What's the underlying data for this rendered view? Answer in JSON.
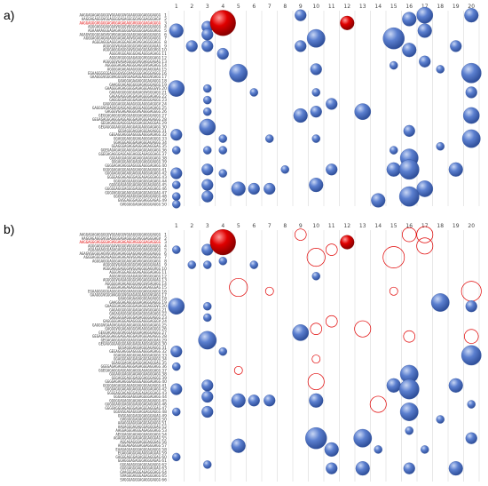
{
  "colors": {
    "blue_bubble": "#5b7fcf",
    "blue_bubble_dark": "#2f4f9a",
    "red_bubble": "#e00000",
    "open_circle": "#e00000",
    "grid": "#d9d9d9"
  },
  "chart_data": [
    {
      "type": "scatter",
      "panel_label": "a)",
      "x_ticks": [
        1,
        2,
        3,
        4,
        5,
        6,
        7,
        8,
        9,
        10,
        11,
        12,
        13,
        14,
        15,
        16,
        17,
        18,
        19,
        20
      ],
      "y_ticks": [
        1,
        2,
        3,
        4,
        5,
        6,
        7,
        8,
        9,
        10,
        11,
        12,
        13,
        14,
        15,
        16,
        17,
        18,
        19,
        20,
        21,
        22,
        23,
        24,
        25,
        26,
        27,
        28,
        29,
        30,
        31,
        32,
        33,
        34,
        35,
        36,
        37,
        38,
        39,
        40,
        41,
        42,
        43,
        44,
        45,
        46,
        47,
        48,
        49,
        50
      ],
      "highlighted_rows": [
        3
      ],
      "red_bubbles": [
        {
          "x": 4,
          "y": 3,
          "size": 10
        },
        {
          "x": 12,
          "y": 3,
          "size": 3
        }
      ],
      "blue_bubbles": [
        {
          "x": 9,
          "y": 1,
          "size": 2
        },
        {
          "x": 16,
          "y": 2,
          "size": 3
        },
        {
          "x": 17,
          "y": 1,
          "size": 4
        },
        {
          "x": 20,
          "y": 1,
          "size": 3
        },
        {
          "x": 1,
          "y": 5,
          "size": 3
        },
        {
          "x": 3,
          "y": 4,
          "size": 2
        },
        {
          "x": 3,
          "y": 6,
          "size": 2
        },
        {
          "x": 10,
          "y": 7,
          "size": 5
        },
        {
          "x": 15,
          "y": 7,
          "size": 7
        },
        {
          "x": 17,
          "y": 5,
          "size": 3
        },
        {
          "x": 2,
          "y": 9,
          "size": 2
        },
        {
          "x": 3,
          "y": 9,
          "size": 2
        },
        {
          "x": 4,
          "y": 11,
          "size": 2
        },
        {
          "x": 9,
          "y": 9,
          "size": 2
        },
        {
          "x": 16,
          "y": 10,
          "size": 3
        },
        {
          "x": 19,
          "y": 9,
          "size": 2
        },
        {
          "x": 15,
          "y": 14,
          "size": 1
        },
        {
          "x": 17,
          "y": 13,
          "size": 2
        },
        {
          "x": 18,
          "y": 15,
          "size": 1
        },
        {
          "x": 10,
          "y": 15,
          "size": 2
        },
        {
          "x": 5,
          "y": 16,
          "size": 5
        },
        {
          "x": 20,
          "y": 16,
          "size": 6
        },
        {
          "x": 1,
          "y": 20,
          "size": 4
        },
        {
          "x": 3,
          "y": 20,
          "size": 1
        },
        {
          "x": 6,
          "y": 21,
          "size": 1
        },
        {
          "x": 10,
          "y": 21,
          "size": 1
        },
        {
          "x": 20,
          "y": 21,
          "size": 2
        },
        {
          "x": 3,
          "y": 23,
          "size": 1
        },
        {
          "x": 11,
          "y": 24,
          "size": 2
        },
        {
          "x": 3,
          "y": 26,
          "size": 1
        },
        {
          "x": 9,
          "y": 27,
          "size": 3
        },
        {
          "x": 10,
          "y": 26,
          "size": 2
        },
        {
          "x": 13,
          "y": 26,
          "size": 4
        },
        {
          "x": 20,
          "y": 27,
          "size": 4
        },
        {
          "x": 3,
          "y": 30,
          "size": 4
        },
        {
          "x": 1,
          "y": 32,
          "size": 2
        },
        {
          "x": 4,
          "y": 33,
          "size": 1
        },
        {
          "x": 7,
          "y": 33,
          "size": 1
        },
        {
          "x": 16,
          "y": 31,
          "size": 2
        },
        {
          "x": 10,
          "y": 33,
          "size": 1
        },
        {
          "x": 20,
          "y": 33,
          "size": 5
        },
        {
          "x": 1,
          "y": 36,
          "size": 1
        },
        {
          "x": 3,
          "y": 36,
          "size": 1
        },
        {
          "x": 4,
          "y": 36,
          "size": 1
        },
        {
          "x": 15,
          "y": 36,
          "size": 1
        },
        {
          "x": 16,
          "y": 38,
          "size": 5
        },
        {
          "x": 18,
          "y": 35,
          "size": 1
        },
        {
          "x": 3,
          "y": 41,
          "size": 2
        },
        {
          "x": 1,
          "y": 42,
          "size": 2
        },
        {
          "x": 4,
          "y": 42,
          "size": 1
        },
        {
          "x": 11,
          "y": 41,
          "size": 2
        },
        {
          "x": 15,
          "y": 41,
          "size": 3
        },
        {
          "x": 16,
          "y": 41,
          "size": 6
        },
        {
          "x": 19,
          "y": 41,
          "size": 3
        },
        {
          "x": 8,
          "y": 41,
          "size": 1
        },
        {
          "x": 1,
          "y": 45,
          "size": 1
        },
        {
          "x": 3,
          "y": 45,
          "size": 2
        },
        {
          "x": 5,
          "y": 46,
          "size": 3
        },
        {
          "x": 6,
          "y": 46,
          "size": 2
        },
        {
          "x": 7,
          "y": 46,
          "size": 2
        },
        {
          "x": 10,
          "y": 45,
          "size": 3
        },
        {
          "x": 17,
          "y": 46,
          "size": 4
        },
        {
          "x": 1,
          "y": 48,
          "size": 1
        },
        {
          "x": 3,
          "y": 48,
          "size": 2
        },
        {
          "x": 14,
          "y": 49,
          "size": 3
        },
        {
          "x": 16,
          "y": 48,
          "size": 6
        },
        {
          "x": 1,
          "y": 50,
          "size": 1
        }
      ],
      "open_circles": []
    },
    {
      "type": "scatter",
      "panel_label": "b)",
      "x_ticks": [
        1,
        2,
        3,
        4,
        5,
        6,
        7,
        8,
        9,
        10,
        11,
        12,
        13,
        14,
        15,
        16,
        17,
        18,
        19,
        20
      ],
      "y_ticks": [
        1,
        2,
        3,
        4,
        5,
        6,
        7,
        8,
        9,
        10,
        11,
        12,
        13,
        14,
        15,
        16,
        17,
        18,
        19,
        20,
        21,
        22,
        23,
        24,
        25,
        26,
        27,
        28,
        29,
        30,
        31,
        32,
        33,
        34,
        35,
        36,
        37,
        38,
        39,
        40,
        41,
        42,
        43,
        44,
        45,
        46,
        47,
        48,
        49,
        50,
        51,
        52,
        53,
        54,
        55,
        56,
        57,
        58,
        59,
        60,
        61,
        62,
        63,
        64,
        65,
        66
      ],
      "highlighted_rows": [
        3
      ],
      "red_bubbles": [
        {
          "x": 4,
          "y": 3,
          "size": 10
        },
        {
          "x": 12,
          "y": 3,
          "size": 3
        }
      ],
      "blue_bubbles": [
        {
          "x": 1,
          "y": 5,
          "size": 1
        },
        {
          "x": 3,
          "y": 5,
          "size": 2
        },
        {
          "x": 4,
          "y": 8,
          "size": 1
        },
        {
          "x": 2,
          "y": 9,
          "size": 1
        },
        {
          "x": 3,
          "y": 9,
          "size": 1
        },
        {
          "x": 6,
          "y": 9,
          "size": 1
        },
        {
          "x": 10,
          "y": 12,
          "size": 1
        },
        {
          "x": 1,
          "y": 20,
          "size": 4
        },
        {
          "x": 3,
          "y": 20,
          "size": 1
        },
        {
          "x": 18,
          "y": 19,
          "size": 5
        },
        {
          "x": 20,
          "y": 20,
          "size": 2
        },
        {
          "x": 3,
          "y": 23,
          "size": 1
        },
        {
          "x": 9,
          "y": 27,
          "size": 4
        },
        {
          "x": 3,
          "y": 29,
          "size": 5
        },
        {
          "x": 1,
          "y": 32,
          "size": 2
        },
        {
          "x": 4,
          "y": 32,
          "size": 1
        },
        {
          "x": 20,
          "y": 33,
          "size": 6
        },
        {
          "x": 1,
          "y": 36,
          "size": 1
        },
        {
          "x": 16,
          "y": 38,
          "size": 5
        },
        {
          "x": 15,
          "y": 41,
          "size": 3
        },
        {
          "x": 16,
          "y": 42,
          "size": 6
        },
        {
          "x": 19,
          "y": 41,
          "size": 3
        },
        {
          "x": 3,
          "y": 41,
          "size": 2
        },
        {
          "x": 1,
          "y": 42,
          "size": 2
        },
        {
          "x": 5,
          "y": 45,
          "size": 3
        },
        {
          "x": 6,
          "y": 45,
          "size": 2
        },
        {
          "x": 7,
          "y": 45,
          "size": 2
        },
        {
          "x": 10,
          "y": 45,
          "size": 3
        },
        {
          "x": 3,
          "y": 44,
          "size": 2
        },
        {
          "x": 16,
          "y": 48,
          "size": 5
        },
        {
          "x": 20,
          "y": 46,
          "size": 1
        },
        {
          "x": 1,
          "y": 48,
          "size": 1
        },
        {
          "x": 3,
          "y": 48,
          "size": 2
        },
        {
          "x": 18,
          "y": 50,
          "size": 1
        },
        {
          "x": 10,
          "y": 55,
          "size": 7
        },
        {
          "x": 13,
          "y": 55,
          "size": 5
        },
        {
          "x": 16,
          "y": 53,
          "size": 1
        },
        {
          "x": 20,
          "y": 55,
          "size": 2
        },
        {
          "x": 5,
          "y": 57,
          "size": 3
        },
        {
          "x": 11,
          "y": 58,
          "size": 3
        },
        {
          "x": 17,
          "y": 58,
          "size": 1
        },
        {
          "x": 1,
          "y": 60,
          "size": 1
        },
        {
          "x": 3,
          "y": 62,
          "size": 1
        },
        {
          "x": 11,
          "y": 63,
          "size": 2
        },
        {
          "x": 13,
          "y": 63,
          "size": 3
        },
        {
          "x": 16,
          "y": 63,
          "size": 2
        },
        {
          "x": 19,
          "y": 63,
          "size": 3
        },
        {
          "x": 14,
          "y": 58,
          "size": 1
        }
      ],
      "open_circles": [
        {
          "x": 9,
          "y": 1,
          "size": 2
        },
        {
          "x": 16,
          "y": 1,
          "size": 3
        },
        {
          "x": 17,
          "y": 1,
          "size": 4
        },
        {
          "x": 17,
          "y": 4,
          "size": 4
        },
        {
          "x": 10,
          "y": 7,
          "size": 5
        },
        {
          "x": 15,
          "y": 7,
          "size": 7
        },
        {
          "x": 11,
          "y": 5,
          "size": 2
        },
        {
          "x": 5,
          "y": 15,
          "size": 5
        },
        {
          "x": 7,
          "y": 16,
          "size": 1
        },
        {
          "x": 20,
          "y": 16,
          "size": 6
        },
        {
          "x": 15,
          "y": 16,
          "size": 1
        },
        {
          "x": 11,
          "y": 24,
          "size": 2
        },
        {
          "x": 10,
          "y": 26,
          "size": 2
        },
        {
          "x": 13,
          "y": 26,
          "size": 4
        },
        {
          "x": 16,
          "y": 28,
          "size": 2
        },
        {
          "x": 20,
          "y": 28,
          "size": 3
        },
        {
          "x": 5,
          "y": 37,
          "size": 1
        },
        {
          "x": 10,
          "y": 40,
          "size": 4
        },
        {
          "x": 14,
          "y": 46,
          "size": 4
        },
        {
          "x": 10,
          "y": 34,
          "size": 1
        }
      ]
    }
  ],
  "panel_a": {
    "sequences": [
      "AAGGAGAGAGGGGGVGGAGGGVGGAGGGGGAGGGAGGG",
      "AAGGAGAGGGVGGAGGGGAGAGGGGGVGGGAGGGAGV",
      "AAGGAGGGVGGGGAGVGGAGAGAGGVGGGGGAGAGGGG",
      "AGGGAGGGAGGGAVGGGGVGGGGVGGAGGGAGGG",
      "AGAAAAAGGGAGAGAGGGGGAGGGGGGAGGGAGG",
      "AGAGVGGGGGAGVGGVGGAGAGGGAGGAGGAGGGAGGG",
      "AGGGAGGGAGAGAGGGAGAGAGVGGAGGVGGGAGGG",
      "AGGGAGGGAGGGAGGGAGGAGVGGAGGGGAGG",
      "AGGGGGVGAGAGGGGGVGGAGGGAGAG",
      "AGGGAGGGAGGGAVGGAGGGGAGGVGG",
      "AGGGVGGGAGGGGAGAGGGAGAGG",
      "AGGGVGGGGGAGAGGGVGGGGAGG",
      "AGGGGGVGAGAGGGGGVGGAGGGAGAG",
      "AGGGGGAGAGAGGGGAGGGVGAGAGG",
      "AGGGGAGAGAGAGGGGGAGAGGGAG",
      "EGAAGGGGGGAGGGGVGGGVAGGGGGAGGGAGGG",
      "GAAGGGVGGGVAGGGGVGGAGAGGAGGGVGAGG",
      "GAAGGAGAAAGGGGAGAGGG",
      "GAAGGGAGAGGGGGAGAGGGAGGG",
      "GAAGGGAGAGGGGGAGAGGGAGGGVG",
      "GAGAGGGGGGGGAGAGGVGGGAGG",
      "GAGAGAGGGAGGAGAGGGGAGAGG",
      "GAGGGGGAGGGGAGAGGGGGAGGG",
      "GAGGGGGAGGGAGAGGGGAGGGAGGGV",
      "GAGGGVGAAGVGGAGGAGGAGGGAGGGAGAGG",
      "GAGGGVGGAGAGGGGVGAGGGAGGGG",
      "GEGGAGAGGGGVGGGAGGGAGAGGGAGGG",
      "GEGAGAGGGAGGGAGGAGGGAGVGGGAGAGGG",
      "GEGAGAGGGAGGGGAGGGAGGGAGGGAG",
      "GEGAGGGGAGGGGAGGGAGGAGGGAGAGG",
      "GEGAGGGAGGAGGGAGAGGG",
      "GEGAGGAGGGAGGGGAGGGAGAGG",
      "GGAGGGAGGGGAGAGGGAGGGG",
      "GGAGGGAGGGAGAGGGAGAGGG",
      "GGAGGGAGAGGAGGGAGAGGGAG",
      "GGEGAGAGAGGGAGGGAGAGGGAGGAGG",
      "GGEGAGAGGGAGGAGGAGGGAGAGGGAGG",
      "GGGAGGGAGGGAGAGGGAGGGAGG",
      "GGGAGGGAGGGAGGGAGGGAGGG",
      "GGGGAGAGAGGGAGGGGAGGGAGAGG",
      "GGGGGAGAGGGAGAGGAGGGGAGAGGG",
      "GGGGAGGGAGAGGAGGGAGGGAGAGG",
      "GGGGAGGAGAGGGAGGAGAGGGAGG",
      "GGGGAGGGAGGGAGGGGAGAGG",
      "GGGGGAGAGGGAGAGGGGAGAGGG",
      "GGGGGAGGGAGGGGAGGGAGAGGAGG",
      "GGGGVGGGAGAGGGAGAGGGAGGGAG",
      "GGGVGGAGAGGGAGGAGGAGGG",
      "GVGGAGGGAGGGAGGGAGAG",
      "GVGGGGGAGAGGGGGAGGG"
    ]
  },
  "panel_b": {
    "sequences": [
      "AAGGAGAGAGGGGGVGGAGGGVGGAGGGGGAGGGAGGG",
      "AAGGAGAGGGVGGAGGGGAGAGGGGGVGGGAGGGAGV",
      "AAGGAGGGVGGGGAGVGGAGAGAGGVGGGGGAGAGGGG",
      "AGGGAGGGAGGGAVGGGGVGGGGVGGAGGGAGGG",
      "AGAAAAAGGGAGAGAGGGGGAGGGGGGAGGGAGG",
      "AGAGVGGGGGAGVGGVGGAGAGGGAGGAGGAGGGAGGG",
      "AGGGAGGGAGAGAGGGAGAGAGVGGAGGVGGGAGGG",
      "AGGGAGGGAGGGAGGGAGGAGVGGAGGGGAGG",
      "AGGGGGVGAGAGGGGGVGGAGGGAGAG",
      "AGGGAGGGAGGGAVGGAGGGGAGGVGG",
      "AGGGVGGGAGGGGAGAGGGAGAGG",
      "AGGGVGGGGGAGAGGGVGGGGAGG",
      "AGGGGGVGAGAGGGGGVGGAGGGAGAG",
      "AGGGGGAGAGAGGGGAGGGVGAGAGG",
      "AGGGGAGAGAGAGGGGGAGAGGGAG",
      "EGAAGGGGGGAGGGGVGGGVAGGGGGAGGGAGGG",
      "GAAGGGVGGGVAGGGGVGGAGAGGAGGGVGAGG",
      "GAAGGAGAAAGGGGAGAGGG",
      "GAAGGGAGAGGGGGAGAGGGAGGG",
      "GAAGGGAGAGGGGGAGAGGGAGGGVG",
      "GAGAGGGGGGGGAGAGGVGGGAGG",
      "GAGAGAGGGAGGAGAGGGGAGAGG",
      "GAGGGGGAGGGGAGAGGGGGAGGG",
      "GAGGGGGAGGGAGAGGGGAGGGAGGGV",
      "GAGGGVGAAGVGGAGGAGGAGGGAGGGAGAGG",
      "GAGGGVGGAGAGGGGVGAGGGAGGGG",
      "GEGGAGAGGGGVGGGAGGGAGAGGGAGGG",
      "GEGAGAGGGAGGGAGGAGGGAGVGGGAGAGGG",
      "GEGAGAGGGAGGGGAGGGAGGGAGGGAG",
      "GEGAGGGGAGGGGAGGGAGGAGGGAGAGG",
      "GEGAGGGAGGAGGGAGAGGG",
      "GEGAGGAGGGAGGGGAGGGAGAGG",
      "GGAGGGAGGGGAGAGGGAGGGG",
      "GGAGGGAGGGAGAGGGAGAGGG",
      "GGAGGGAGAGGAGGGAGAGGGAG",
      "GGEGAGAGAGGGAGGGAGAGGGAGGAGG",
      "GGEGAGAGGGAGGAGGAGGGAGAGGGAGG",
      "GGGAGGGAGGGAGAGGGAGGGAGG",
      "GGGAGGGAGGGAGGGAGGGAGGG",
      "GGGGAGAGAGGGAGGGGAGGGAGAGG",
      "GGGGGAGAGGGAGAGGAGGGGAGAGGG",
      "GGGGAGGGAGAGGAGGGAGGGAGAGG",
      "GGGGAGGAGAGGGAGGAGAGGGAGG",
      "GGGGAGGGAGGGAGGGGAGAGG",
      "GGGGGAGAGGGAGAGGGGAGAGGG",
      "GGGGGAGGGAGGGGAGGGAGAGGAGG",
      "GGGGVGGGAGAGGGAGAGGGAGGGAG",
      "GGGVGGAGAGGGAGGAGGAGGG",
      "GVGGAGGGAGGGAGGGAGAG",
      "GVGGGGGAGAGGGGGAGGG",
      "AAAGGGAGGGAGGGAGAGGG",
      "AAGAGGGAGAGGGAGGGGAG",
      "AAGGAGGGAGGGAGAGGGAGG",
      "AEGGAGGGAGAGGGAGGGAGG",
      "AGAGGGAGGGAGAGGGAGGGAG",
      "AGGAGAGGGAGGGAGGGAG",
      "AGGGAGAGGGAGGAGGGAGG",
      "EAAGAGGAGGGAGGGAGAGGG",
      "EGAGGAGGGAGAGGGAGGAG",
      "GAGGGAGGGAGAGGGAGGGAG",
      "GGAGGGAGAGGGAGGGAGAG",
      "GGGAGAGGGAGGGAGAGGG",
      "GGGGAGGGAGAGGGAGGAG",
      "GVAGGGAGGGAGAGGGAGG",
      "SVAGGGAGGGAGAGGGAGG",
      "SVGGGAGGGAGAGGGAGGG"
    ]
  }
}
